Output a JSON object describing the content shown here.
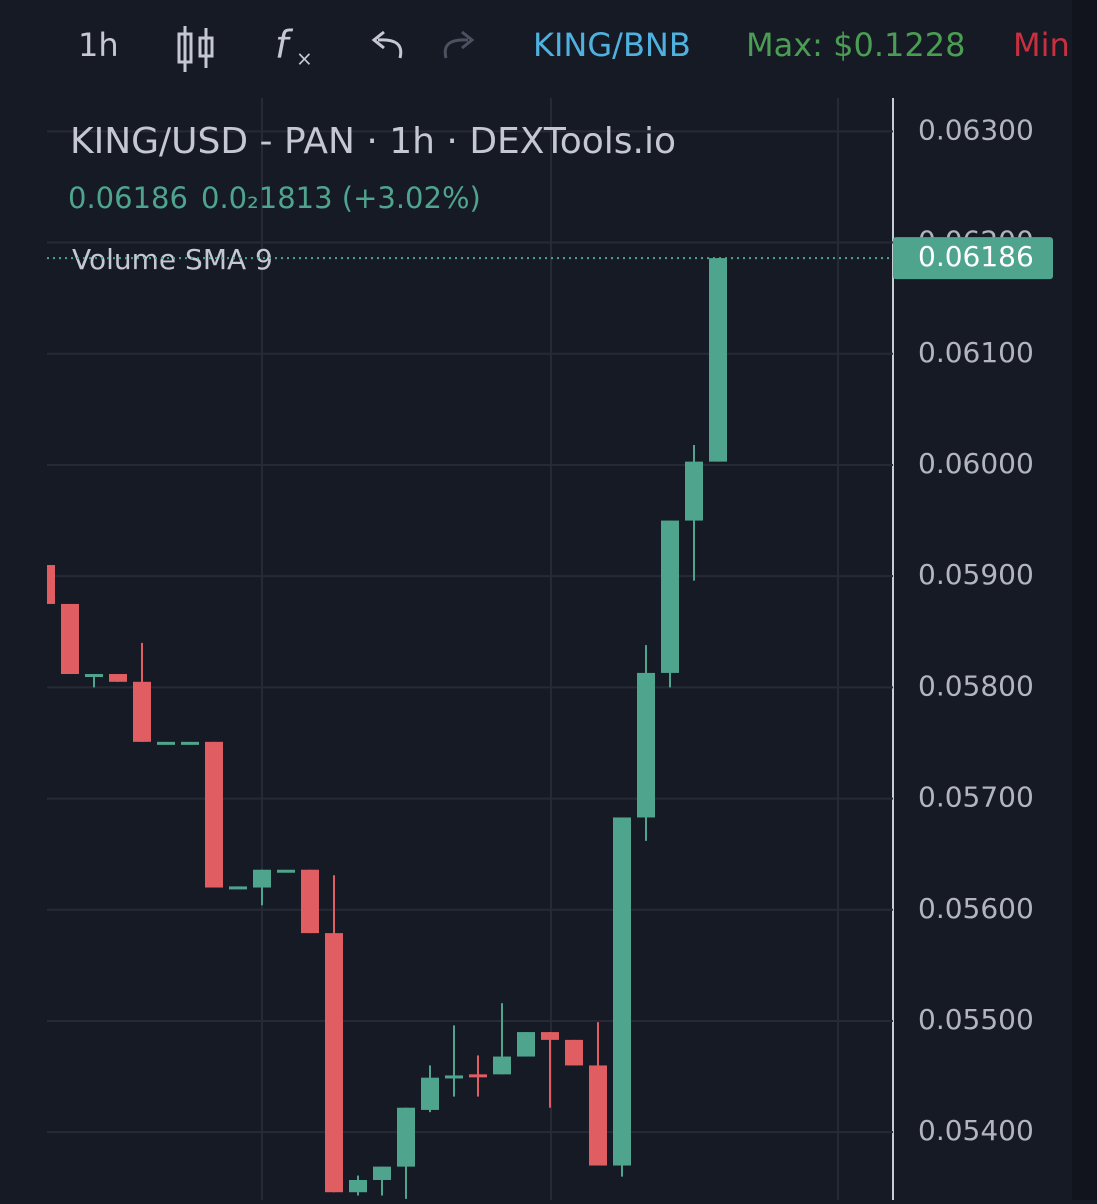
{
  "toolbar": {
    "interval": "1h",
    "pair": "KING/BNB",
    "max": "Max: $0.1228",
    "min": "Min"
  },
  "chart_data": {
    "type": "candlestick",
    "title": "KING/USD - PAN · 1h · DEXTools.io",
    "price": "0.06186",
    "change": "0.0₂1813 (+3.02%)",
    "indicator": "Volume SMA 9",
    "open": [
      0.0591,
      0.05875,
      0.05811,
      0.05812,
      0.05805,
      0.05751,
      0.05751,
      0.05751,
      0.0562,
      0.0562,
      0.05636,
      0.05636,
      0.05579,
      0.05346,
      0.05357,
      0.05369,
      0.0542,
      0.0545,
      0.05452,
      0.05452,
      0.05468,
      0.0549,
      0.05483,
      0.0546,
      0.0537,
      0.05683,
      0.05813,
      0.0595,
      0.06003
    ],
    "high": [
      0.0591,
      0.05875,
      0.05812,
      0.05812,
      0.0584,
      0.05751,
      0.05751,
      0.05751,
      0.05621,
      0.05636,
      0.05636,
      0.05636,
      0.05631,
      0.05361,
      0.05369,
      0.05422,
      0.0546,
      0.05496,
      0.05469,
      0.05516,
      0.0549,
      0.0549,
      0.05483,
      0.05499,
      0.05683,
      0.05838,
      0.0595,
      0.06018,
      0.06186
    ],
    "low": [
      0.05875,
      0.05812,
      0.058,
      0.05805,
      0.05751,
      0.05751,
      0.05751,
      0.0562,
      0.0562,
      0.05604,
      0.05636,
      0.05579,
      0.05346,
      0.05343,
      0.05343,
      0.0534,
      0.05418,
      0.05432,
      0.05432,
      0.05452,
      0.05468,
      0.05422,
      0.0546,
      0.0537,
      0.0536,
      0.05662,
      0.058,
      0.05896,
      0.06003
    ],
    "close": [
      0.05875,
      0.05812,
      0.05812,
      0.05805,
      0.05751,
      0.05751,
      0.05751,
      0.0562,
      0.05621,
      0.05636,
      0.05636,
      0.05579,
      0.05346,
      0.05357,
      0.05369,
      0.05422,
      0.05449,
      0.05451,
      0.05451,
      0.05468,
      0.0549,
      0.05483,
      0.0546,
      0.0537,
      0.05683,
      0.05813,
      0.0595,
      0.06003,
      0.06186
    ],
    "up_color": "#4fa48e",
    "down_color": "#e05d62",
    "last_price": 0.06186,
    "ylim": [
      0.05339,
      0.0633
    ],
    "yticks": [
      {
        "value": 0.063,
        "label": "0.06300"
      },
      {
        "value": 0.062,
        "label": "0.06200"
      },
      {
        "value": 0.061,
        "label": "0.06100"
      },
      {
        "value": 0.06,
        "label": "0.06000"
      },
      {
        "value": 0.059,
        "label": "0.05900"
      },
      {
        "value": 0.058,
        "label": "0.05800"
      },
      {
        "value": 0.057,
        "label": "0.05700"
      },
      {
        "value": 0.056,
        "label": "0.05600"
      },
      {
        "value": 0.055,
        "label": "0.05500"
      },
      {
        "value": 0.054,
        "label": "0.05400"
      }
    ],
    "grid": true
  }
}
